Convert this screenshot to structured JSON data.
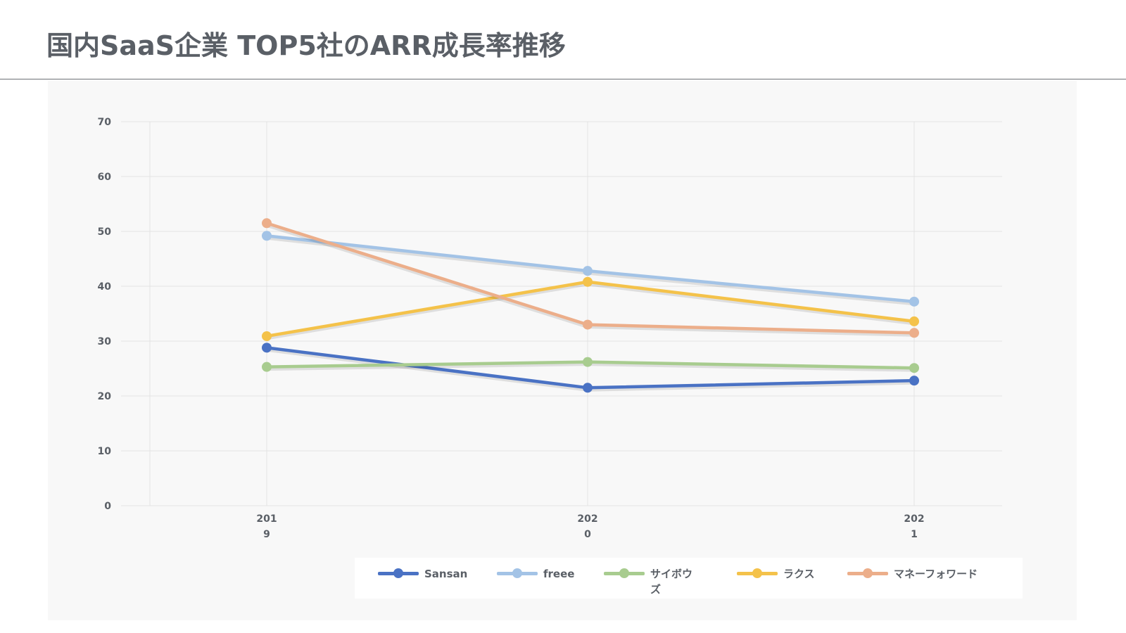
{
  "title": "国内SaaS企業 TOP5社のARR成長率推移",
  "chart_data": {
    "type": "line",
    "categories": [
      "2019",
      "2020",
      "2021"
    ],
    "ylim": [
      0,
      70
    ],
    "yticks": [
      0,
      10,
      20,
      30,
      40,
      50,
      60,
      70
    ],
    "grid": true,
    "legend_position": "bottom",
    "series": [
      {
        "name": "Sansan",
        "color": "#4a72c4",
        "values": [
          28.8,
          21.5,
          22.8
        ]
      },
      {
        "name": "freee",
        "color": "#a3c3e6",
        "values": [
          49.2,
          42.8,
          37.2
        ]
      },
      {
        "name": "サイボウズ",
        "color": "#a8cc8f",
        "values": [
          25.3,
          26.2,
          25.1
        ]
      },
      {
        "name": "ラクス",
        "color": "#f4c24a",
        "values": [
          30.9,
          40.8,
          33.6
        ]
      },
      {
        "name": "マネーフォワード",
        "color": "#ecae8a",
        "values": [
          51.5,
          33.0,
          31.5
        ]
      }
    ]
  }
}
